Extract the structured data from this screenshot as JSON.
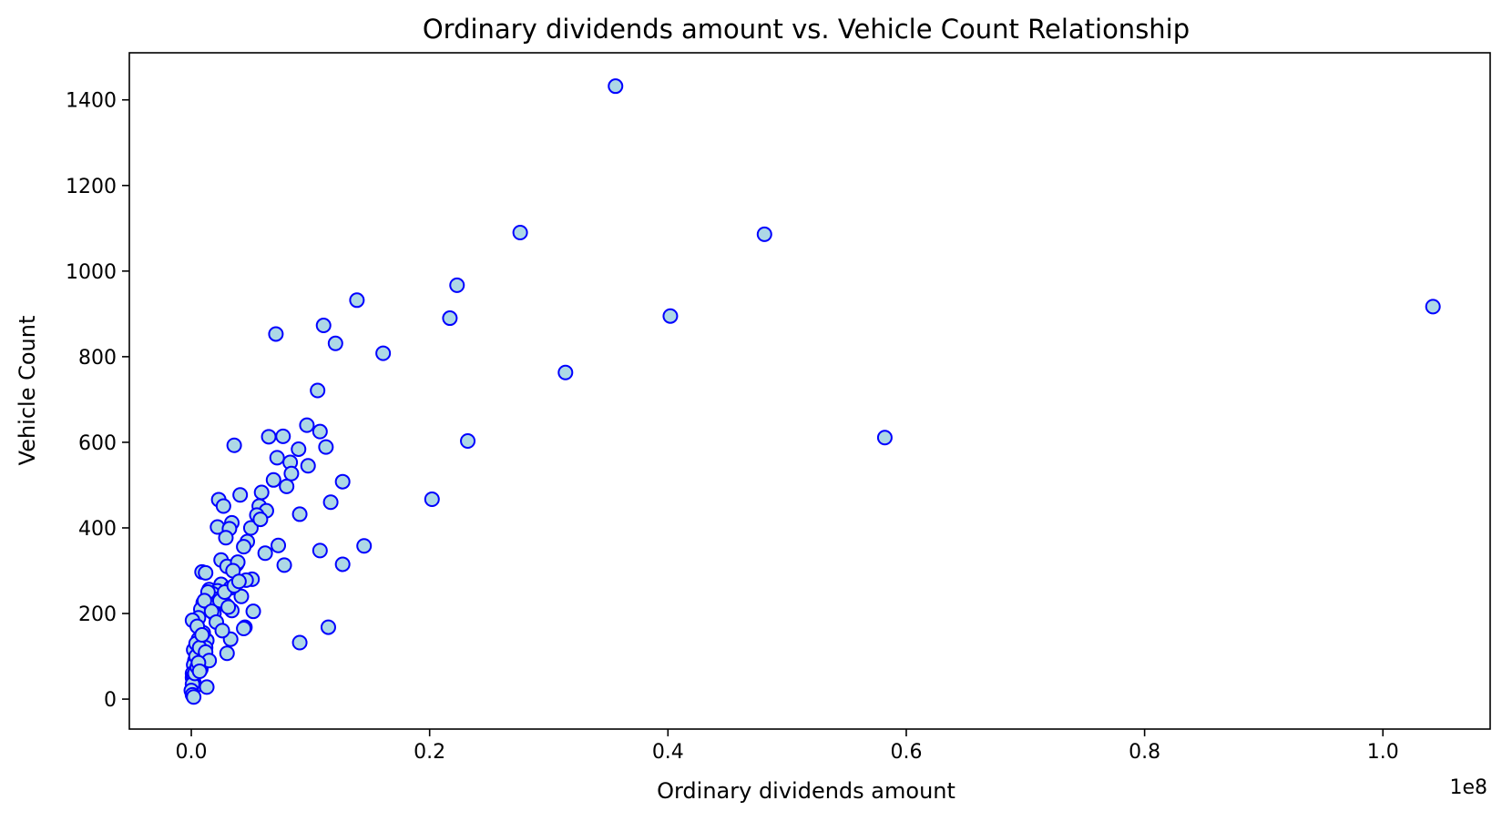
{
  "chart_data": {
    "type": "scatter",
    "title": "Ordinary dividends amount vs. Vehicle Count Relationship",
    "xlabel": "Ordinary dividends amount",
    "ylabel": "Vehicle Count",
    "x_offset_text": "1e8",
    "xlim": [
      -0.052,
      1.09
    ],
    "ylim": [
      -70,
      1510
    ],
    "x_ticks": [
      0.0,
      0.2,
      0.4,
      0.6,
      0.8,
      1.0
    ],
    "x_tick_labels": [
      "0.0",
      "0.2",
      "0.4",
      "0.6",
      "0.8",
      "1.0"
    ],
    "y_ticks": [
      0,
      200,
      400,
      600,
      800,
      1000,
      1200,
      1400
    ],
    "y_tick_labels": [
      "0",
      "200",
      "400",
      "600",
      "800",
      "1000",
      "1200",
      "1400"
    ],
    "grid": false,
    "legend": "none",
    "marker_fill": "#add8e6",
    "marker_edge": "#0000ff",
    "x": [
      0.356,
      0.276,
      0.481,
      0.223,
      0.139,
      0.217,
      0.402,
      0.111,
      0.071,
      0.121,
      0.161,
      0.314,
      0.106,
      0.097,
      0.108,
      1.042,
      0.582,
      0.232,
      0.113,
      0.065,
      0.077,
      0.09,
      0.036,
      0.072,
      0.083,
      0.098,
      0.069,
      0.08,
      0.127,
      0.202,
      0.117,
      0.059,
      0.041,
      0.023,
      0.057,
      0.063,
      0.084,
      0.091,
      0.027,
      0.034,
      0.05,
      0.022,
      0.032,
      0.029,
      0.047,
      0.044,
      0.073,
      0.145,
      0.108,
      0.062,
      0.025,
      0.127,
      0.078,
      0.038,
      0.03,
      0.052,
      0.045,
      0.009,
      0.012,
      0.025,
      0.033,
      0.015,
      0.022,
      0.042,
      0.018,
      0.01,
      0.029,
      0.02,
      0.034,
      0.051,
      0.008,
      0.006,
      0.115,
      0.091,
      0.044,
      0.033,
      0.03,
      0.013,
      0.004,
      0.001,
      0.01,
      0.005,
      0.012,
      0.002,
      0.006,
      0.004,
      0.003,
      0.002,
      0.001,
      0.001,
      0.002,
      0.003,
      0.013,
      0.008,
      0.002,
      0.001,
      0.0,
      0.001,
      0.002,
      0.004,
      0.016,
      0.019,
      0.024,
      0.028,
      0.036,
      0.039,
      0.046,
      0.055,
      0.058,
      0.014,
      0.011,
      0.017,
      0.021,
      0.026,
      0.031,
      0.007,
      0.009,
      0.012,
      0.015,
      0.003,
      0.005,
      0.006,
      0.007,
      0.035,
      0.04
    ],
    "y": [
      1432,
      1090,
      1086,
      967,
      932,
      890,
      895,
      873,
      853,
      831,
      808,
      763,
      721,
      640,
      625,
      917,
      611,
      603,
      589,
      613,
      614,
      584,
      593,
      564,
      553,
      545,
      512,
      497,
      508,
      467,
      460,
      483,
      477,
      466,
      451,
      440,
      527,
      432,
      451,
      412,
      400,
      402,
      398,
      377,
      368,
      356,
      359,
      358,
      347,
      341,
      325,
      315,
      313,
      315,
      310,
      205,
      168,
      297,
      295,
      268,
      260,
      256,
      253,
      240,
      246,
      225,
      220,
      233,
      207,
      280,
      210,
      190,
      168,
      132,
      165,
      140,
      107,
      137,
      100,
      184,
      155,
      170,
      120,
      115,
      140,
      130,
      90,
      80,
      60,
      50,
      40,
      30,
      28,
      70,
      55,
      35,
      20,
      10,
      5,
      100,
      220,
      200,
      230,
      250,
      265,
      320,
      278,
      430,
      420,
      250,
      230,
      205,
      180,
      160,
      215,
      120,
      150,
      110,
      90,
      60,
      75,
      85,
      65,
      300,
      275
    ]
  }
}
